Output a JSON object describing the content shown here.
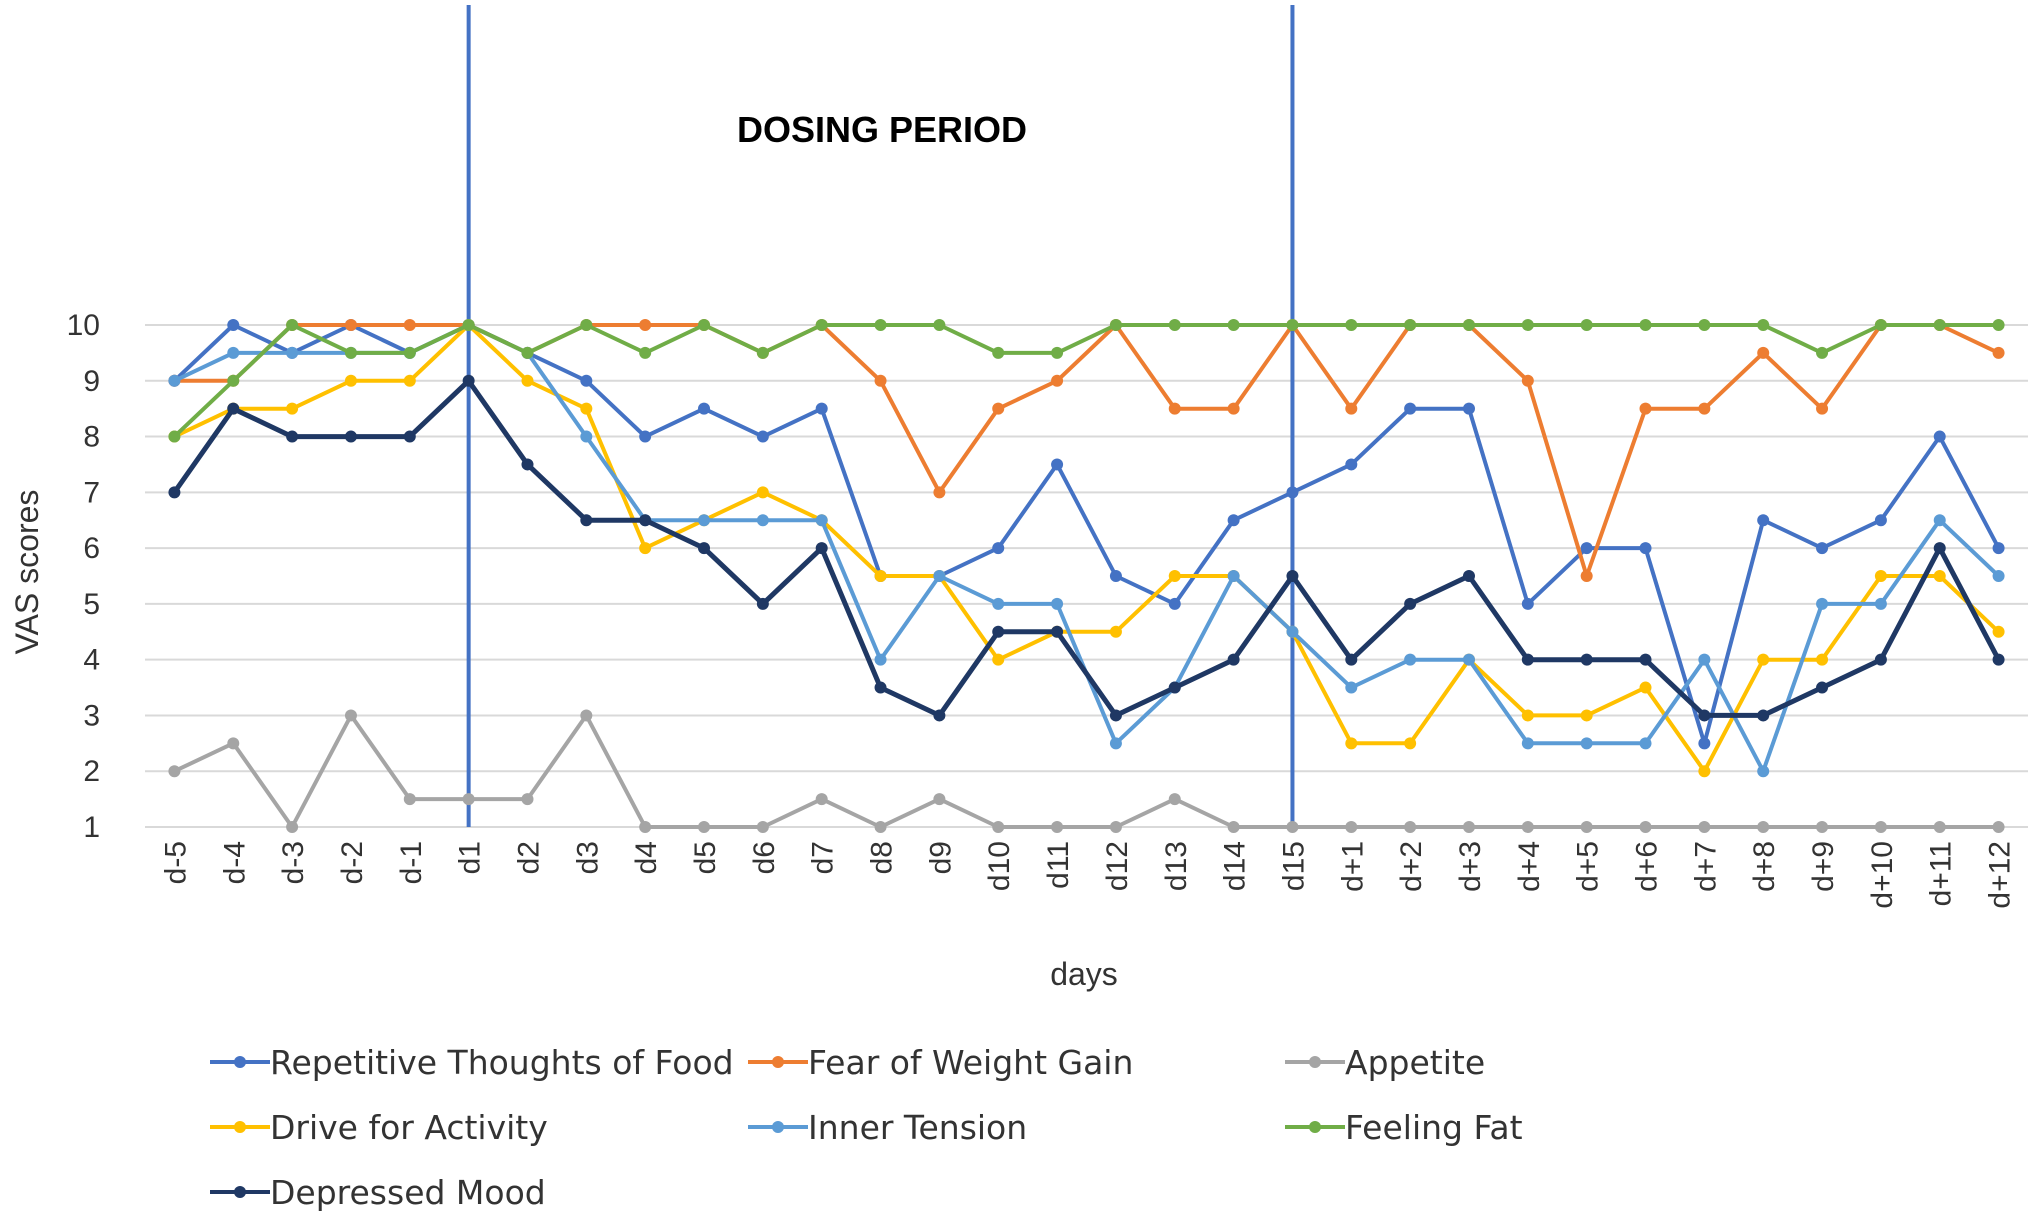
{
  "chart_data": {
    "type": "line",
    "xlabel": "days",
    "ylabel": "VAS scores",
    "ylim": [
      1,
      10
    ],
    "yticks": [
      1,
      2,
      3,
      4,
      5,
      6,
      7,
      8,
      9,
      10
    ],
    "grid": true,
    "legend_position": "bottom",
    "categories": [
      "d-5",
      "d-4",
      "d-3",
      "d-2",
      "d-1",
      "d1",
      "d2",
      "d3",
      "d4",
      "d5",
      "d6",
      "d7",
      "d8",
      "d9",
      "d10",
      "d11",
      "d12",
      "d13",
      "d14",
      "d15",
      "d+1",
      "d+2",
      "d+3",
      "d+4",
      "d+5",
      "d+6",
      "d+7",
      "d+8",
      "d+9",
      "d+10",
      "d+11",
      "d+12"
    ],
    "annotations": [
      {
        "text": "DOSING PERIOD",
        "from": "d1",
        "to": "d15",
        "line_color": "#4472c4"
      }
    ],
    "series": [
      {
        "name": "Repetitive Thoughts of Food",
        "color": "#4472c4",
        "values": [
          9,
          10,
          9.5,
          10,
          9.5,
          10,
          9.5,
          9,
          8,
          8.5,
          8,
          8.5,
          5.5,
          5.5,
          6,
          7.5,
          5.5,
          5,
          6.5,
          7,
          7.5,
          8.5,
          8.5,
          5,
          6,
          6,
          2.5,
          6.5,
          6,
          6.5,
          8,
          6
        ]
      },
      {
        "name": "Fear of Weight Gain",
        "color": "#ed7d31",
        "values": [
          9,
          9,
          10,
          10,
          10,
          10,
          9.5,
          10,
          10,
          10,
          9.5,
          10,
          9,
          7,
          8.5,
          9,
          10,
          8.5,
          8.5,
          10,
          8.5,
          10,
          10,
          9,
          5.5,
          8.5,
          8.5,
          9.5,
          8.5,
          10,
          10,
          9.5
        ]
      },
      {
        "name": "Appetite",
        "color": "#a5a5a5",
        "values": [
          2,
          2.5,
          1,
          3,
          1.5,
          1.5,
          1.5,
          3,
          1,
          1,
          1,
          1.5,
          1,
          1.5,
          1,
          1,
          1,
          1.5,
          1,
          1,
          1,
          1,
          1,
          1,
          1,
          1,
          1,
          1,
          1,
          1,
          1,
          1
        ]
      },
      {
        "name": "Drive for Activity",
        "color": "#ffc000",
        "values": [
          8,
          8.5,
          8.5,
          9,
          9,
          10,
          9,
          8.5,
          6,
          6.5,
          7,
          6.5,
          5.5,
          5.5,
          4,
          4.5,
          4.5,
          5.5,
          5.5,
          4.5,
          2.5,
          2.5,
          4,
          3,
          3,
          3.5,
          2,
          4,
          4,
          5.5,
          5.5,
          4.5
        ]
      },
      {
        "name": "Inner Tension",
        "color": "#5b9bd5",
        "values": [
          9,
          9.5,
          9.5,
          9.5,
          9.5,
          10,
          9.5,
          8,
          6.5,
          6.5,
          6.5,
          6.5,
          4,
          5.5,
          5,
          5,
          2.5,
          3.5,
          5.5,
          4.5,
          3.5,
          4,
          4,
          2.5,
          2.5,
          2.5,
          4,
          2,
          5,
          5,
          6.5,
          5.5
        ]
      },
      {
        "name": "Feeling Fat",
        "color": "#70ad47",
        "values": [
          8,
          9,
          10,
          9.5,
          9.5,
          10,
          9.5,
          10,
          9.5,
          10,
          9.5,
          10,
          10,
          10,
          9.5,
          9.5,
          10,
          10,
          10,
          10,
          10,
          10,
          10,
          10,
          10,
          10,
          10,
          10,
          9.5,
          10,
          10,
          10
        ]
      },
      {
        "name": "Depressed Mood",
        "color": "#1f3864",
        "values": [
          7,
          8.5,
          8,
          8,
          8,
          9,
          7.5,
          6.5,
          6.5,
          6,
          5,
          6,
          3.5,
          3,
          4.5,
          4.5,
          3,
          3.5,
          4,
          5.5,
          4,
          5,
          5.5,
          4,
          4,
          4,
          3,
          3,
          3.5,
          4,
          6,
          4
        ]
      }
    ]
  }
}
